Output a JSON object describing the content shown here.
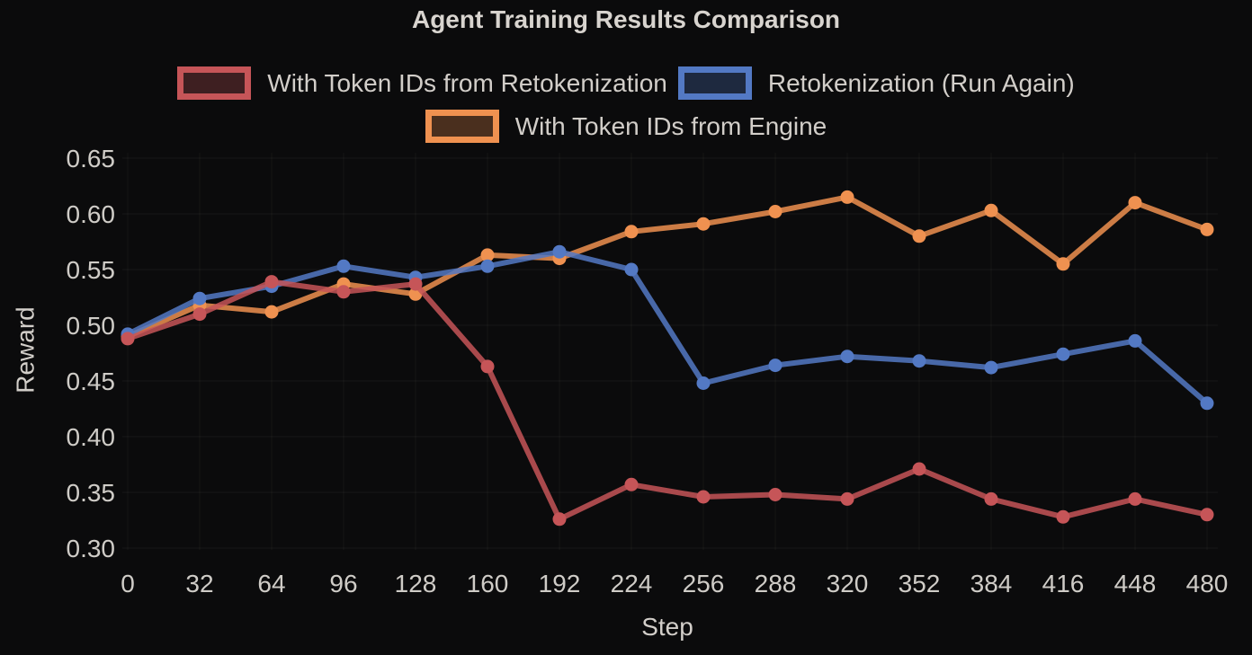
{
  "title": "Agent Training Results Comparison",
  "chart_data": {
    "type": "line",
    "title": "Agent Training Results Comparison",
    "xlabel": "Step",
    "ylabel": "Reward",
    "x": [
      0,
      32,
      64,
      96,
      128,
      160,
      192,
      224,
      256,
      288,
      320,
      352,
      384,
      416,
      448,
      480
    ],
    "series": [
      {
        "id": "with-token-ids-from-retokenization",
        "name": "With Token IDs from Retokenization",
        "color": "#c65558",
        "values": [
          0.488,
          0.51,
          0.539,
          0.53,
          0.537,
          0.463,
          0.326,
          0.357,
          0.346,
          0.348,
          0.344,
          0.371,
          0.344,
          0.328,
          0.344,
          0.33
        ]
      },
      {
        "id": "retokenization-run-again",
        "name": "Retokenization (Run Again)",
        "color": "#5379c4",
        "values": [
          0.492,
          0.524,
          0.535,
          0.553,
          0.543,
          0.553,
          0.566,
          0.55,
          0.448,
          0.464,
          0.472,
          0.468,
          0.462,
          0.474,
          0.486,
          0.43
        ]
      },
      {
        "id": "with-token-ids-from-engine",
        "name": "With Token IDs from Engine",
        "color": "#ef9150",
        "values": [
          0.49,
          0.518,
          0.512,
          0.537,
          0.528,
          0.563,
          0.56,
          0.584,
          0.591,
          0.602,
          0.615,
          0.58,
          0.603,
          0.555,
          0.61,
          0.586
        ]
      }
    ],
    "ylim": [
      0.3,
      0.65
    ],
    "ytick_step": 0.05,
    "ytick_labels": [
      "0.30",
      "0.35",
      "0.40",
      "0.45",
      "0.50",
      "0.55",
      "0.60",
      "0.65"
    ],
    "grid": true,
    "legend_position": "top",
    "background": "#0b0b0c",
    "text_color": "#cfccc7"
  }
}
